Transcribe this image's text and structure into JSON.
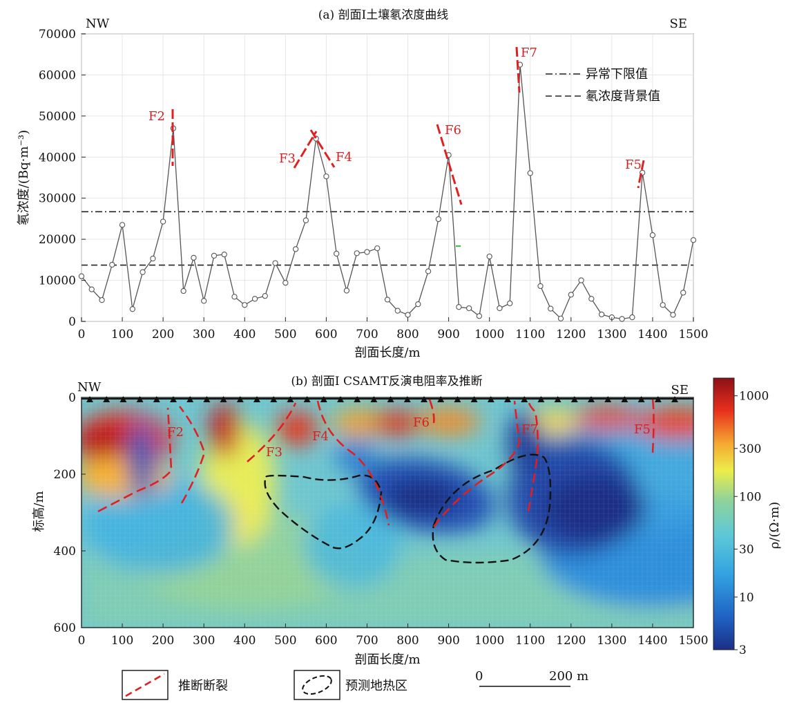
{
  "chart_data": [
    {
      "type": "line",
      "title": "(a) 剖面I土壤氡浓度曲线",
      "xlabel": "剖面长度/m",
      "ylabel": "氡浓度/(Bq·m⁻³)",
      "xlim": [
        0,
        1500
      ],
      "ylim": [
        0,
        70000
      ],
      "x_ticks": [
        "0",
        "100",
        "200",
        "300",
        "400",
        "500",
        "600",
        "700",
        "800",
        "900",
        "1000",
        "1100",
        "1200",
        "1300",
        "1400",
        "1500"
      ],
      "y_ticks": [
        "0",
        "10000",
        "20000",
        "30000",
        "40000",
        "50000",
        "60000",
        "70000"
      ],
      "grid": true,
      "direction_labels": {
        "left": "NW",
        "right": "SE"
      },
      "series": [
        {
          "x": [
            0,
            25,
            50,
            75,
            100,
            125,
            150,
            175,
            200,
            225,
            250,
            275,
            300,
            325,
            350,
            375,
            400,
            425,
            450,
            475,
            500,
            525,
            550,
            575,
            600,
            625,
            650,
            675,
            700,
            725,
            750,
            775,
            800,
            825,
            850,
            875,
            900,
            925,
            950,
            975,
            1000,
            1025,
            1050,
            1075,
            1100,
            1125,
            1150,
            1175,
            1200,
            1225,
            1250,
            1275,
            1300,
            1325,
            1350,
            1375,
            1400,
            1425,
            1450,
            1475,
            1500
          ],
          "values": [
            11000,
            7800,
            5200,
            13800,
            23500,
            3000,
            12000,
            15300,
            24300,
            47000,
            7400,
            15500,
            5000,
            16000,
            16300,
            6000,
            4000,
            5500,
            6200,
            14200,
            9400,
            17600,
            24600,
            44500,
            35300,
            16500,
            7500,
            16600,
            16900,
            17800,
            5300,
            2600,
            1600,
            4200,
            12200,
            24900,
            40500,
            3500,
            3200,
            1300,
            15800,
            3200,
            4400,
            62500,
            36100,
            8600,
            3100,
            700,
            6500,
            10000,
            5500,
            1700,
            1000,
            600,
            1000,
            36200,
            21000,
            4000,
            1600,
            7000,
            19800
          ]
        }
      ],
      "reference_lines": [
        {
          "name": "异常下限值",
          "value": 26700,
          "style": "dash-dot"
        },
        {
          "name": "氡浓度背景值",
          "value": 13700,
          "style": "dashed"
        }
      ],
      "fault_labels": [
        "F2",
        "F3",
        "F4",
        "F6",
        "F7",
        "F5"
      ]
    },
    {
      "type": "heatmap",
      "title": "(b) 剖面I CSAMT反演电阻率及推断",
      "xlabel": "剖面长度/m",
      "ylabel": "标高/m",
      "xlim": [
        0,
        1500
      ],
      "ylim": [
        0,
        600
      ],
      "x_ticks": [
        "0",
        "100",
        "200",
        "300",
        "400",
        "500",
        "600",
        "700",
        "800",
        "900",
        "1000",
        "1100",
        "1200",
        "1300",
        "1400",
        "1500"
      ],
      "y_ticks": [
        "0",
        "200",
        "400",
        "600"
      ],
      "direction_labels": {
        "left": "NW",
        "right": "SE"
      },
      "fault_labels": [
        "F2",
        "F3",
        "F4",
        "F6",
        "F7",
        "F5"
      ],
      "colorbar": {
        "label": "ρ/(Ω·m)",
        "scale": "log",
        "ticks": [
          "1000",
          "300",
          "100",
          "30",
          "10",
          "3"
        ],
        "colors": [
          "#1c2f86",
          "#1f62c4",
          "#33a3e0",
          "#5dc8d8",
          "#8fd29a",
          "#ecee4a",
          "#f4a832",
          "#e8301c",
          "#8c1016"
        ]
      }
    }
  ],
  "legend": {
    "fault": "推断断裂",
    "geothermal": "预测地热区",
    "scale_start": "0",
    "scale_end": "200 m"
  },
  "colors": {
    "fault": "#e02020",
    "curve": "#555555",
    "zone": "#111111"
  }
}
